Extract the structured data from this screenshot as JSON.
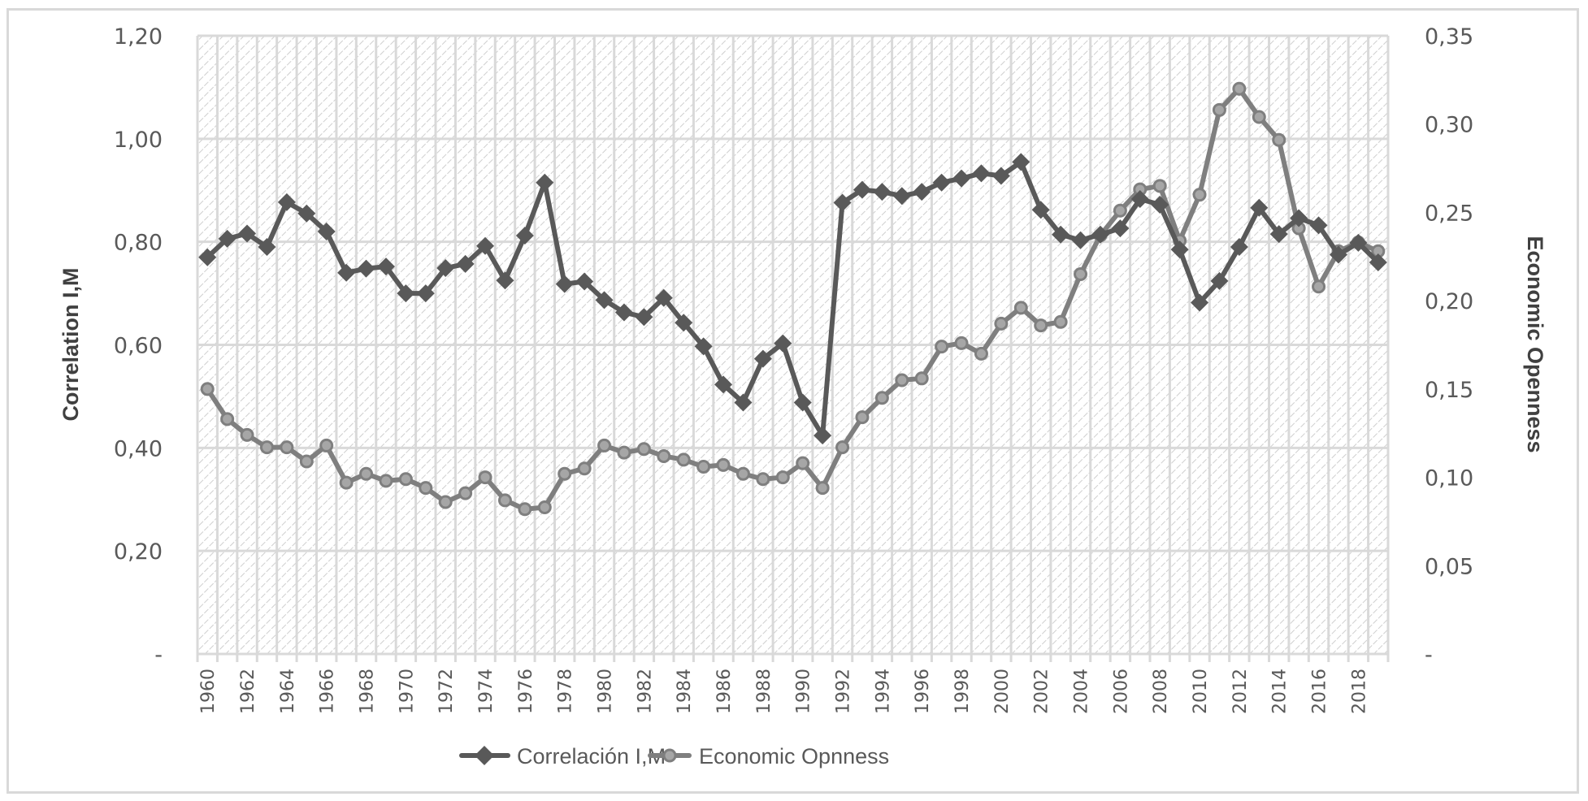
{
  "chart_data": {
    "type": "line",
    "title": "",
    "xlabel": "",
    "ylabel": "Correlation I,M",
    "y2label": "Economic Openness",
    "ylim": [
      0,
      1.2
    ],
    "y2lim": [
      0,
      0.35
    ],
    "yticks": [
      "-",
      "0,20",
      "0,40",
      "0,60",
      "0,80",
      "1,00",
      "1,20"
    ],
    "y2ticks": [
      "-",
      "0,05",
      "0,10",
      "0,15",
      "0,20",
      "0,25",
      "0,30",
      "0,35"
    ],
    "grid": true,
    "legend_position": "bottom",
    "x": [
      1960,
      1961,
      1962,
      1963,
      1964,
      1965,
      1966,
      1967,
      1968,
      1969,
      1970,
      1971,
      1972,
      1973,
      1974,
      1975,
      1976,
      1977,
      1978,
      1979,
      1980,
      1981,
      1982,
      1983,
      1984,
      1985,
      1986,
      1987,
      1988,
      1989,
      1990,
      1991,
      1992,
      1993,
      1994,
      1995,
      1996,
      1997,
      1998,
      1999,
      2000,
      2001,
      2002,
      2003,
      2004,
      2005,
      2006,
      2007,
      2008,
      2009,
      2010,
      2011,
      2012,
      2013,
      2014,
      2015,
      2016,
      2017,
      2018,
      2019
    ],
    "xtick_labels": [
      "1960",
      "1962",
      "1964",
      "1966",
      "1968",
      "1970",
      "1972",
      "1974",
      "1976",
      "1978",
      "1980",
      "1982",
      "1984",
      "1986",
      "1988",
      "1990",
      "1992",
      "1994",
      "1996",
      "1998",
      "2000",
      "2002",
      "2004",
      "2006",
      "2008",
      "2010",
      "2012",
      "2014",
      "2016",
      "2018"
    ],
    "series": [
      {
        "name": "Correlación I,M",
        "axis": "left",
        "marker": "diamond",
        "color": "#595959",
        "values": [
          0.77,
          0.806,
          0.816,
          0.79,
          0.877,
          0.855,
          0.82,
          0.74,
          0.748,
          0.752,
          0.7,
          0.7,
          0.749,
          0.757,
          0.792,
          0.725,
          0.812,
          0.915,
          0.718,
          0.723,
          0.687,
          0.663,
          0.654,
          0.691,
          0.643,
          0.597,
          0.523,
          0.488,
          0.573,
          0.603,
          0.488,
          0.424,
          0.876,
          0.901,
          0.897,
          0.889,
          0.897,
          0.915,
          0.923,
          0.933,
          0.928,
          0.955,
          0.862,
          0.814,
          0.803,
          0.814,
          0.826,
          0.883,
          0.872,
          0.785,
          0.682,
          0.724,
          0.79,
          0.866,
          0.815,
          0.846,
          0.832,
          0.775,
          0.798,
          0.76
        ]
      },
      {
        "name": "Economic Opnness",
        "axis": "right",
        "marker": "circle",
        "color": "#7f7f7f",
        "values": [
          0.15,
          0.133,
          0.124,
          0.117,
          0.117,
          0.109,
          0.118,
          0.097,
          0.102,
          0.098,
          0.099,
          0.094,
          0.086,
          0.091,
          0.1,
          0.087,
          0.082,
          0.083,
          0.102,
          0.105,
          0.118,
          0.114,
          0.116,
          0.112,
          0.11,
          0.106,
          0.107,
          0.102,
          0.099,
          0.1,
          0.108,
          0.094,
          0.117,
          0.134,
          0.145,
          0.155,
          0.156,
          0.174,
          0.176,
          0.17,
          0.187,
          0.196,
          0.186,
          0.188,
          0.215,
          0.237,
          0.251,
          0.263,
          0.265,
          0.234,
          0.26,
          0.308,
          0.32,
          0.304,
          0.291,
          0.241,
          0.208,
          0.228,
          0.233,
          0.228
        ]
      }
    ]
  },
  "legend": {
    "item1": "Correlación I,M",
    "item2": "Economic Opnness"
  },
  "axes": {
    "left_title": "Correlation I,M",
    "right_title": "Economic Openness"
  }
}
